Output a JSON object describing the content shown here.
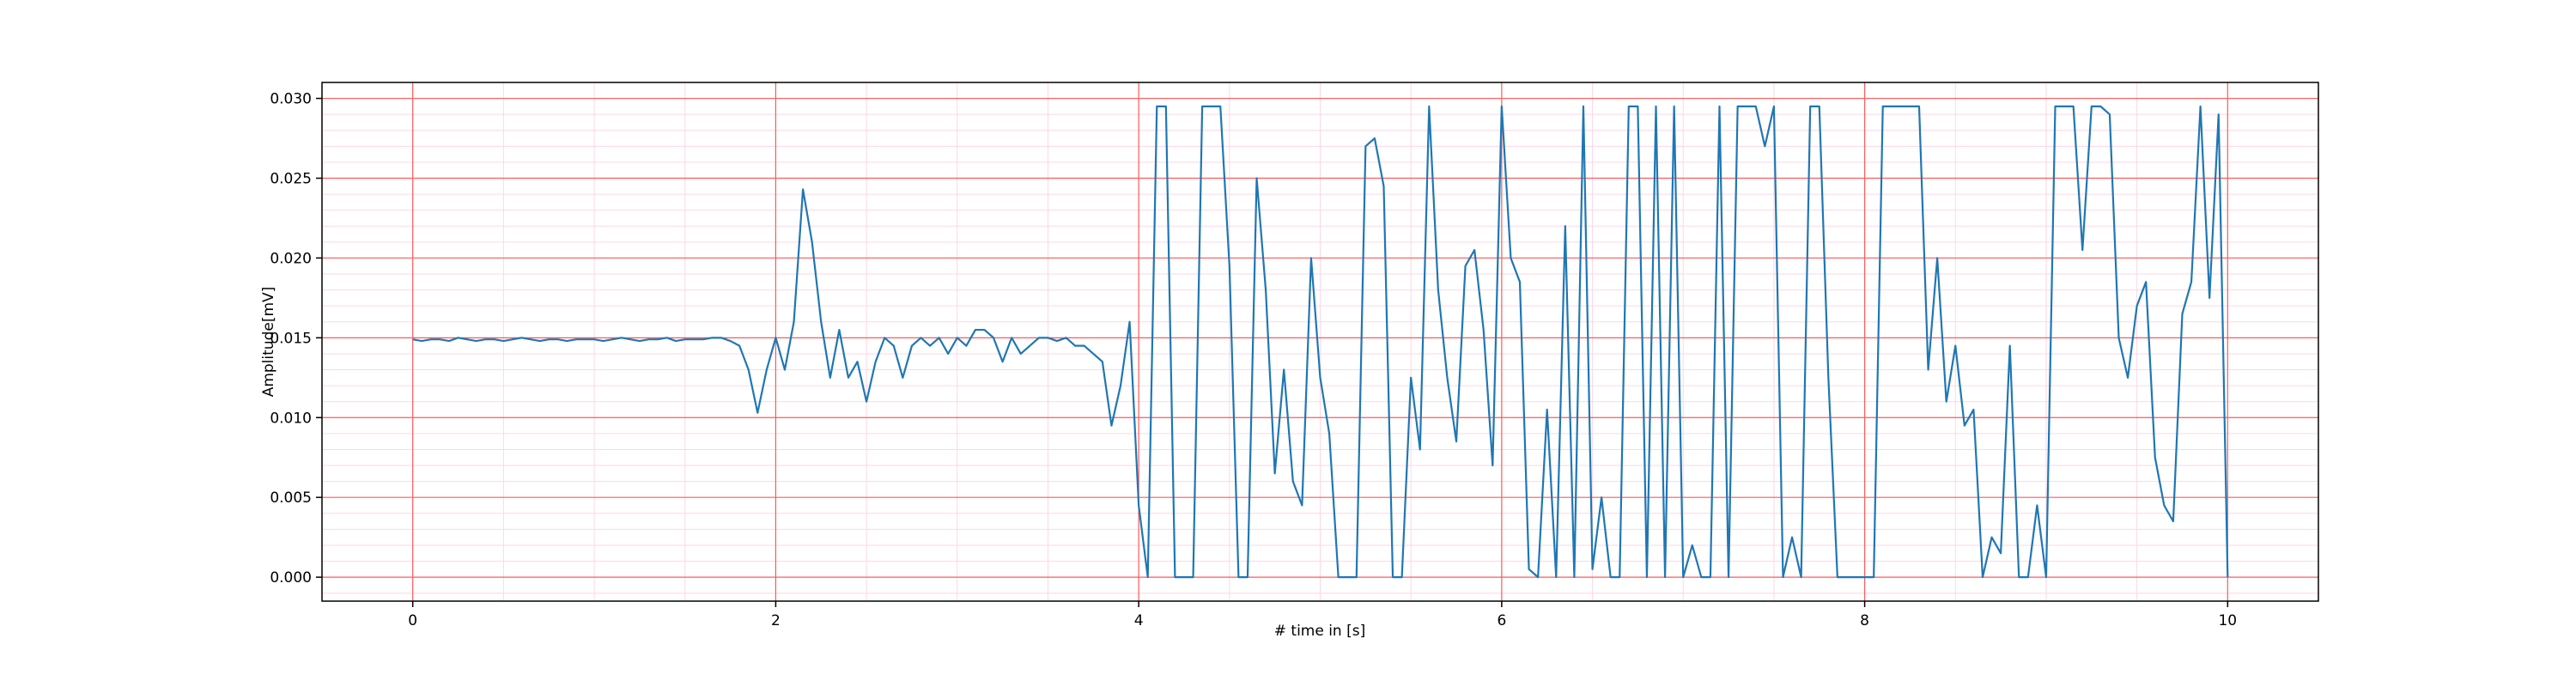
{
  "chart_data": {
    "type": "line",
    "xlabel": "# time in [s]",
    "ylabel": "Amplitude[mV]",
    "xlim": [
      -0.5,
      10.5
    ],
    "ylim": [
      -0.0015,
      0.031
    ],
    "xticks": [
      0,
      2,
      4,
      6,
      8,
      10
    ],
    "yticks": [
      {
        "value": 0,
        "label": "0.000"
      },
      0.005,
      {
        "value": 0.01,
        "label": "0.010"
      },
      0.015,
      {
        "value": 0.02,
        "label": "0.020"
      },
      0.025,
      {
        "value": 0.03,
        "label": "0.030"
      }
    ],
    "xminorticks": [
      -0.5,
      0.5,
      1,
      1.5,
      2.5,
      3,
      3.5,
      4.5,
      5,
      5.5,
      6.5,
      7,
      7.5,
      8.5,
      9,
      9.5,
      10.5
    ],
    "yminorticks": [
      -0.001,
      0.001,
      0.002,
      0.003,
      0.004,
      0.006,
      0.007,
      0.008,
      0.009,
      0.011,
      0.012,
      0.013,
      0.014,
      0.016,
      0.017,
      0.018,
      0.019,
      0.021,
      0.022,
      0.023,
      0.024,
      0.026,
      0.027,
      0.028,
      0.029,
      0.031
    ],
    "grid": true,
    "x": [
      0,
      0.05,
      0.1,
      0.15,
      0.2,
      0.25,
      0.3,
      0.35,
      0.4,
      0.45,
      0.5,
      0.55,
      0.6,
      0.65,
      0.7,
      0.75,
      0.8,
      0.85,
      0.9,
      0.95,
      1,
      1.05,
      1.1,
      1.15,
      1.2,
      1.25,
      1.3,
      1.35,
      1.4,
      1.45,
      1.5,
      1.55,
      1.6,
      1.65,
      1.7,
      1.75,
      1.8,
      1.85,
      1.9,
      1.95,
      2,
      2.05,
      2.1,
      2.15,
      2.2,
      2.25,
      2.3,
      2.35,
      2.4,
      2.45,
      2.5,
      2.55,
      2.6,
      2.65,
      2.7,
      2.75,
      2.8,
      2.85,
      2.9,
      2.95,
      3,
      3.05,
      3.1,
      3.15,
      3.2,
      3.25,
      3.3,
      3.35,
      3.4,
      3.45,
      3.5,
      3.55,
      3.6,
      3.65,
      3.7,
      3.75,
      3.8,
      3.85,
      3.9,
      3.95,
      4,
      4.05,
      4.1,
      4.15,
      4.2,
      4.25,
      4.3,
      4.35,
      4.4,
      4.45,
      4.5,
      4.55,
      4.6,
      4.65,
      4.7,
      4.75,
      4.8,
      4.85,
      4.9,
      4.95,
      5,
      5.05,
      5.1,
      5.15,
      5.2,
      5.25,
      5.3,
      5.35,
      5.4,
      5.45,
      5.5,
      5.55,
      5.6,
      5.65,
      5.7,
      5.75,
      5.8,
      5.85,
      5.9,
      5.95,
      6,
      6.05,
      6.1,
      6.15,
      6.2,
      6.25,
      6.3,
      6.35,
      6.4,
      6.45,
      6.5,
      6.55,
      6.6,
      6.65,
      6.7,
      6.75,
      6.8,
      6.85,
      6.9,
      6.95,
      7,
      7.05,
      7.1,
      7.15,
      7.2,
      7.25,
      7.3,
      7.35,
      7.4,
      7.45,
      7.5,
      7.55,
      7.6,
      7.65,
      7.7,
      7.75,
      7.8,
      7.85,
      7.9,
      7.95,
      8,
      8.05,
      8.1,
      8.15,
      8.2,
      8.25,
      8.3,
      8.35,
      8.4,
      8.45,
      8.5,
      8.55,
      8.6,
      8.65,
      8.7,
      8.75,
      8.8,
      8.85,
      8.9,
      8.95,
      9,
      9.05,
      9.1,
      9.15,
      9.2,
      9.25,
      9.3,
      9.35,
      9.4,
      9.45,
      9.5,
      9.55,
      9.6,
      9.65,
      9.7,
      9.75,
      9.8,
      9.85,
      9.9,
      9.95,
      10
    ],
    "series": [
      {
        "color": "#1f77b4",
        "values": [
          0.0149,
          0.0148,
          0.0149,
          0.0149,
          0.0148,
          0.015,
          0.0149,
          0.0148,
          0.0149,
          0.0149,
          0.0148,
          0.0149,
          0.015,
          0.0149,
          0.0148,
          0.0149,
          0.0149,
          0.0148,
          0.0149,
          0.0149,
          0.0149,
          0.0148,
          0.0149,
          0.015,
          0.0149,
          0.0148,
          0.0149,
          0.0149,
          0.015,
          0.0148,
          0.0149,
          0.0149,
          0.0149,
          0.015,
          0.015,
          0.0148,
          0.0145,
          0.013,
          0.0103,
          0.013,
          0.015,
          0.013,
          0.016,
          0.0243,
          0.021,
          0.016,
          0.0125,
          0.0155,
          0.0125,
          0.0135,
          0.011,
          0.0135,
          0.015,
          0.0145,
          0.0125,
          0.0145,
          0.015,
          0.0145,
          0.015,
          0.014,
          0.015,
          0.0145,
          0.0155,
          0.0155,
          0.015,
          0.0135,
          0.015,
          0.014,
          0.0145,
          0.015,
          0.015,
          0.0148,
          0.015,
          0.0145,
          0.0145,
          0.014,
          0.0135,
          0.0095,
          0.012,
          0.016,
          0.0045,
          0,
          0.0295,
          0.0295,
          0,
          0,
          0,
          0.0295,
          0.0295,
          0.0295,
          0.0195,
          0,
          0,
          0.025,
          0.018,
          0.0065,
          0.013,
          0.006,
          0.0045,
          0.02,
          0.0125,
          0.009,
          0,
          0,
          0,
          0.027,
          0.0275,
          0.0245,
          0,
          0,
          0.0125,
          0.008,
          0.0295,
          0.018,
          0.0125,
          0.0085,
          0.0195,
          0.0205,
          0.0155,
          0.007,
          0.0295,
          0.02,
          0.0185,
          0.0005,
          0,
          0.0105,
          0,
          0.022,
          0,
          0.0295,
          0.0005,
          0.005,
          0,
          0,
          0.0295,
          0.0295,
          0,
          0.0295,
          0,
          0.0295,
          0,
          0.002,
          0,
          0,
          0.0295,
          0,
          0.0295,
          0.0295,
          0.0295,
          0.027,
          0.0295,
          0,
          0.0025,
          0,
          0.0295,
          0.0295,
          0.0125,
          0,
          0,
          0,
          0,
          0,
          0.0295,
          0.0295,
          0.0295,
          0.0295,
          0.0295,
          0.013,
          0.02,
          0.011,
          0.0145,
          0.0095,
          0.0105,
          0,
          0.0025,
          0.0015,
          0.0145,
          0,
          0,
          0.0045,
          0,
          0.0295,
          0.0295,
          0.0295,
          0.0205,
          0.0295,
          0.0295,
          0.029,
          0.015,
          0.0125,
          0.017,
          0.0185,
          0.0075,
          0.0045,
          0.0035,
          0.0165,
          0.0185,
          0.0295,
          0.0175,
          0.029,
          0
        ]
      }
    ]
  }
}
